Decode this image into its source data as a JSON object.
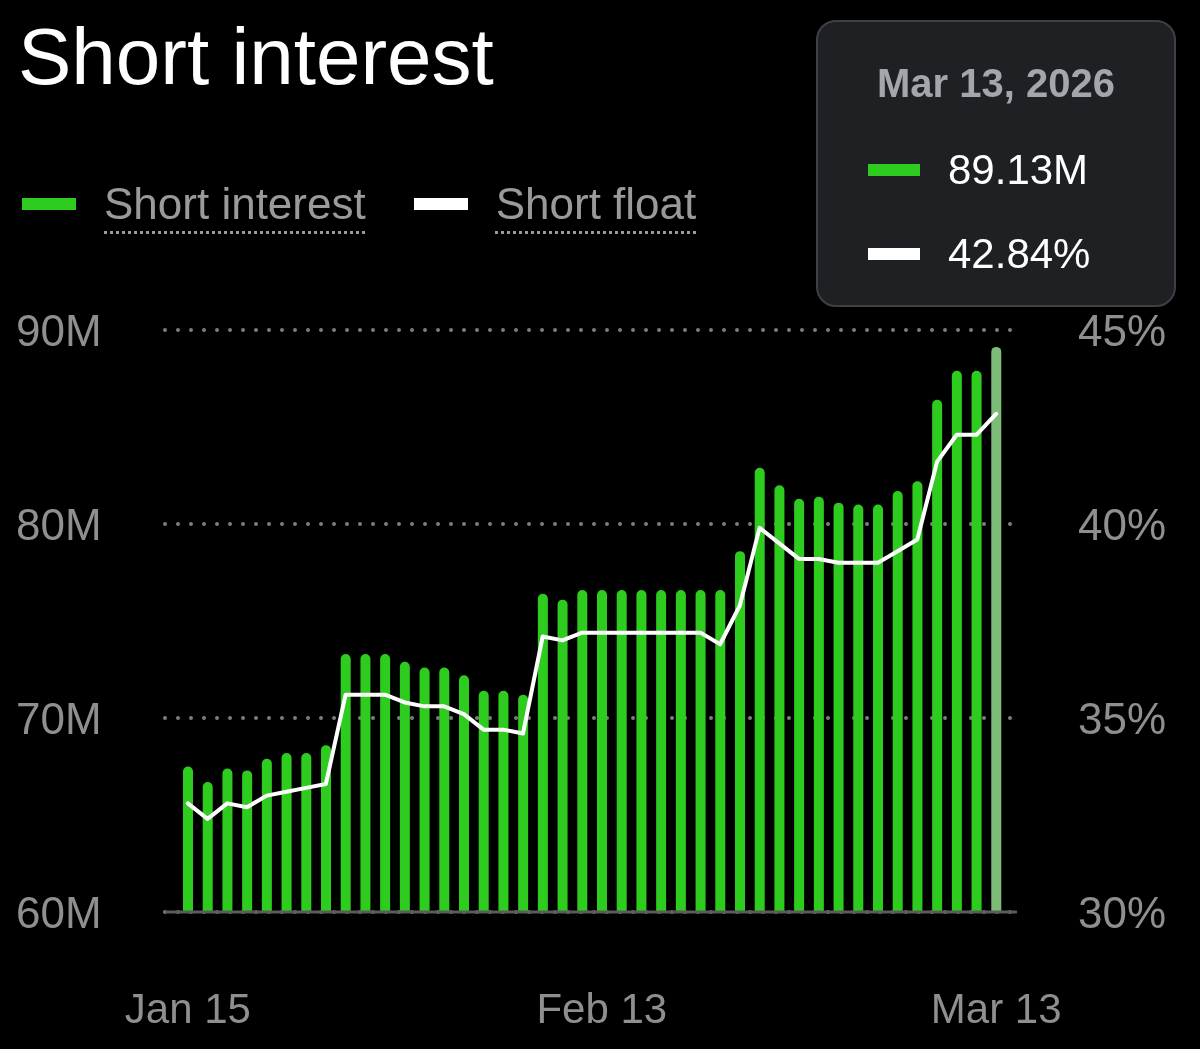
{
  "chart_data": {
    "type": "bar",
    "title": "Short interest",
    "categories": [
      "Jan 15",
      null,
      null,
      null,
      null,
      null,
      null,
      null,
      null,
      null,
      null,
      null,
      null,
      null,
      null,
      null,
      null,
      null,
      null,
      null,
      null,
      "Feb 13",
      null,
      null,
      null,
      null,
      null,
      null,
      null,
      null,
      null,
      null,
      null,
      null,
      null,
      null,
      null,
      null,
      null,
      null,
      null,
      "Mar 13"
    ],
    "series": [
      {
        "name": "Short interest",
        "color": "#2ecc1f",
        "colors": [
          "#2ecc1f",
          "#2ecc1f",
          "#2ecc1f",
          "#2ecc1f",
          "#2ecc1f",
          "#2ecc1f",
          "#2ecc1f",
          "#2ecc1f",
          "#2ecc1f",
          "#2ecc1f",
          "#2ecc1f",
          "#2ecc1f",
          "#2ecc1f",
          "#2ecc1f",
          "#2ecc1f",
          "#2ecc1f",
          "#2ecc1f",
          "#2ecc1f",
          "#2ecc1f",
          "#2ecc1f",
          "#2ecc1f",
          "#2ecc1f",
          "#2ecc1f",
          "#2ecc1f",
          "#2ecc1f",
          "#2ecc1f",
          "#2ecc1f",
          "#2ecc1f",
          "#2ecc1f",
          "#2ecc1f",
          "#2ecc1f",
          "#2ecc1f",
          "#2ecc1f",
          "#2ecc1f",
          "#2ecc1f",
          "#2ecc1f",
          "#2ecc1f",
          "#2ecc1f",
          "#2ecc1f",
          "#2ecc1f",
          "#2ecc1f",
          "#7cbc78"
        ],
        "values": [
          67.5,
          66.7,
          67.4,
          67.3,
          67.9,
          68.2,
          68.2,
          68.6,
          73.3,
          73.3,
          73.3,
          72.9,
          72.6,
          72.6,
          72.2,
          71.4,
          71.4,
          71.2,
          76.4,
          76.1,
          76.6,
          76.6,
          76.6,
          76.6,
          76.6,
          76.6,
          76.6,
          76.6,
          78.6,
          82.9,
          82.0,
          81.3,
          81.4,
          81.1,
          81.0,
          81.0,
          81.7,
          82.2,
          86.4,
          87.9,
          87.9,
          89.13
        ]
      },
      {
        "name": "Short float",
        "type": "line",
        "axis": "y2",
        "color": "#ffffff",
        "values": [
          32.8,
          32.4,
          32.8,
          32.7,
          33.0,
          33.1,
          33.2,
          33.3,
          35.6,
          35.6,
          35.6,
          35.4,
          35.3,
          35.3,
          35.1,
          34.7,
          34.7,
          34.6,
          37.1,
          37.0,
          37.2,
          37.2,
          37.2,
          37.2,
          37.2,
          37.2,
          37.2,
          36.9,
          37.9,
          39.9,
          39.5,
          39.1,
          39.1,
          39.0,
          39.0,
          39.0,
          39.3,
          39.6,
          41.6,
          42.3,
          42.3,
          42.84
        ]
      }
    ],
    "ylim": [
      60,
      90
    ],
    "yticks": [
      {
        "value": 60,
        "label": "60M"
      },
      {
        "value": 70,
        "label": "70M"
      },
      {
        "value": 80,
        "label": "80M"
      },
      {
        "value": 90,
        "label": "90M"
      }
    ],
    "y2lim": [
      30,
      45
    ],
    "y2ticks": [
      {
        "value": 30,
        "label": "30%"
      },
      {
        "value": 35,
        "label": "35%"
      },
      {
        "value": 40,
        "label": "40%"
      },
      {
        "value": 45,
        "label": "45%"
      }
    ],
    "grid": "y",
    "legend": "top left",
    "annotations": [
      "Mar 13, 2026",
      "89.13M",
      "42.84%"
    ]
  }
}
